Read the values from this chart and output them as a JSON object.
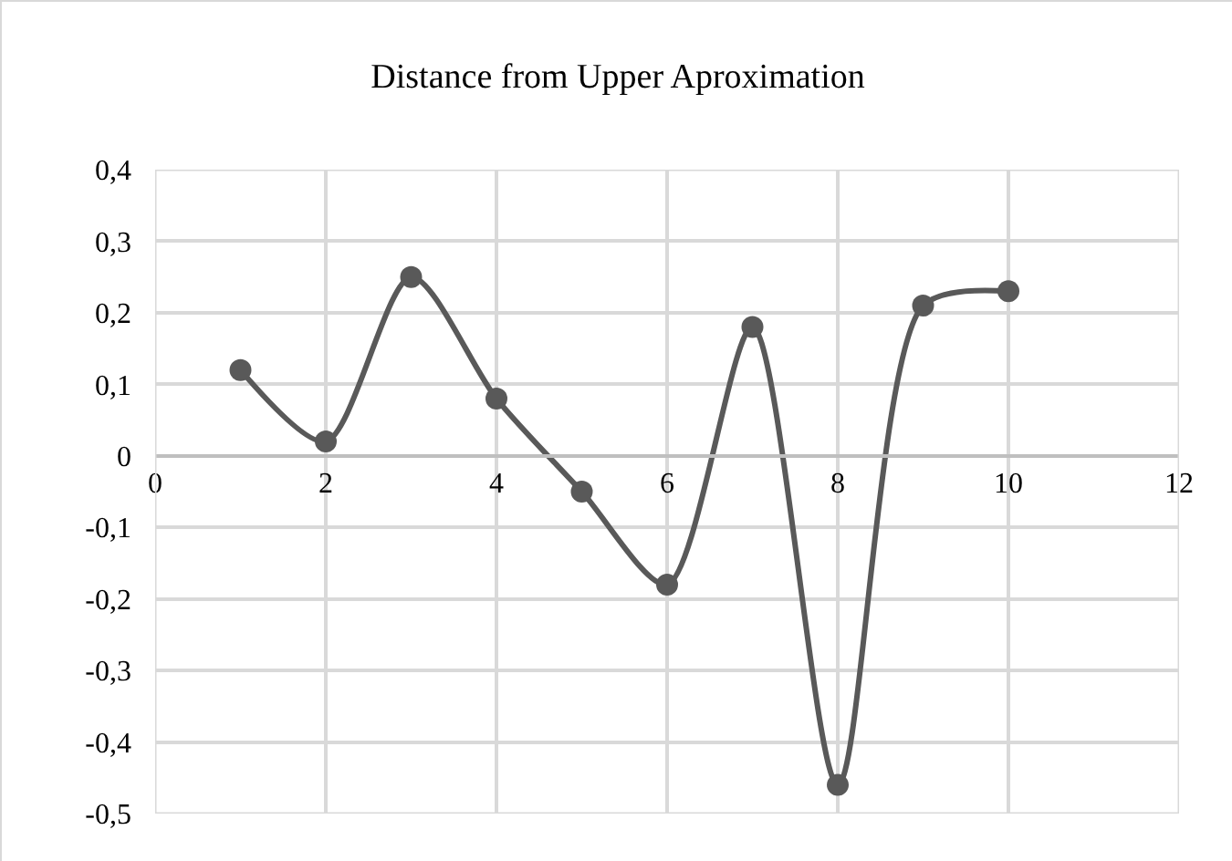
{
  "chart_data": {
    "type": "line",
    "title": "Distance from Upper Aproximation",
    "x": [
      1,
      2,
      3,
      4,
      5,
      6,
      7,
      8,
      9,
      10
    ],
    "series": [
      {
        "color": "#595959",
        "values": [
          0.12,
          0.02,
          0.25,
          0.08,
          -0.05,
          -0.18,
          0.18,
          -0.46,
          0.21,
          0.23
        ]
      }
    ],
    "xlim": [
      0,
      12
    ],
    "xticks": [
      0,
      2,
      4,
      6,
      8,
      10,
      12
    ],
    "ylim": [
      -0.5,
      0.4
    ],
    "yticks": [
      {
        "value": 0.4,
        "label": "0,4"
      },
      {
        "value": 0.3,
        "label": "0,3"
      },
      {
        "value": 0.2,
        "label": "0,2"
      },
      {
        "value": 0.1,
        "label": "0,1"
      },
      0,
      {
        "value": -0.1,
        "label": "-0,1"
      },
      {
        "value": -0.2,
        "label": "-0,2"
      },
      {
        "value": -0.3,
        "label": "-0,3"
      },
      {
        "value": -0.4,
        "label": "-0,4"
      },
      {
        "value": -0.5,
        "label": "-0,5"
      }
    ],
    "grid": true,
    "marker": "circle",
    "line_style": "solid"
  }
}
